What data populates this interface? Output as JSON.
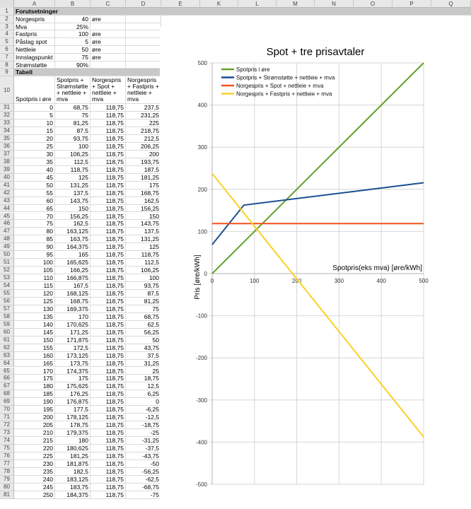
{
  "spreadsheet": {
    "columns": [
      "A",
      "B",
      "C",
      "D",
      "E",
      "K",
      "L",
      "M",
      "N",
      "O",
      "P",
      "Q"
    ],
    "assumptions": {
      "title": "Forutsetninger",
      "rows": [
        {
          "row": "2",
          "label": "Norgespris",
          "value": "40",
          "unit": "øre"
        },
        {
          "row": "3",
          "label": "Mva",
          "value": "25%",
          "unit": ""
        },
        {
          "row": "4",
          "label": "Fastpris",
          "value": "100",
          "unit": "øre"
        },
        {
          "row": "5",
          "label": "Påslag spot",
          "value": "5",
          "unit": "øre"
        },
        {
          "row": "6",
          "label": "Nettleie",
          "value": "50",
          "unit": "øre"
        },
        {
          "row": "7",
          "label": "Innslagspunkt",
          "value": "75",
          "unit": "øre"
        },
        {
          "row": "8",
          "label": "Strømstøtte",
          "value": "90%",
          "unit": ""
        }
      ]
    },
    "table": {
      "title": "Tabell",
      "title_row": "9",
      "header_row": "10",
      "headers": [
        "Spotpris i øre",
        "Spotpris + Strømstøtte + nettleie + mva",
        "Norgespris + Spot + nettleie + mva",
        "Norgespris + Fastpris + nettleie + mva"
      ],
      "rows": [
        [
          "31",
          "0",
          "68,75",
          "118,75",
          "237,5"
        ],
        [
          "32",
          "5",
          "75",
          "118,75",
          "231,25"
        ],
        [
          "33",
          "10",
          "81,25",
          "118,75",
          "225"
        ],
        [
          "34",
          "15",
          "87,5",
          "118,75",
          "218,75"
        ],
        [
          "35",
          "20",
          "93,75",
          "118,75",
          "212,5"
        ],
        [
          "36",
          "25",
          "100",
          "118,75",
          "206,25"
        ],
        [
          "37",
          "30",
          "106,25",
          "118,75",
          "200"
        ],
        [
          "38",
          "35",
          "112,5",
          "118,75",
          "193,75"
        ],
        [
          "39",
          "40",
          "118,75",
          "118,75",
          "187,5"
        ],
        [
          "40",
          "45",
          "125",
          "118,75",
          "181,25"
        ],
        [
          "41",
          "50",
          "131,25",
          "118,75",
          "175"
        ],
        [
          "42",
          "55",
          "137,5",
          "118,75",
          "168,75"
        ],
        [
          "43",
          "60",
          "143,75",
          "118,75",
          "162,5"
        ],
        [
          "44",
          "65",
          "150",
          "118,75",
          "156,25"
        ],
        [
          "45",
          "70",
          "156,25",
          "118,75",
          "150"
        ],
        [
          "46",
          "75",
          "162,5",
          "118,75",
          "143,75"
        ],
        [
          "47",
          "80",
          "163,125",
          "118,75",
          "137,5"
        ],
        [
          "48",
          "85",
          "163,75",
          "118,75",
          "131,25"
        ],
        [
          "49",
          "90",
          "164,375",
          "118,75",
          "125"
        ],
        [
          "50",
          "95",
          "165",
          "118,75",
          "118,75"
        ],
        [
          "51",
          "100",
          "165,625",
          "118,75",
          "112,5"
        ],
        [
          "52",
          "105",
          "166,25",
          "118,75",
          "106,25"
        ],
        [
          "53",
          "110",
          "166,875",
          "118,75",
          "100"
        ],
        [
          "54",
          "115",
          "167,5",
          "118,75",
          "93,75"
        ],
        [
          "55",
          "120",
          "168,125",
          "118,75",
          "87,5"
        ],
        [
          "56",
          "125",
          "168,75",
          "118,75",
          "81,25"
        ],
        [
          "57",
          "130",
          "169,375",
          "118,75",
          "75"
        ],
        [
          "58",
          "135",
          "170",
          "118,75",
          "68,75"
        ],
        [
          "59",
          "140",
          "170,625",
          "118,75",
          "62,5"
        ],
        [
          "60",
          "145",
          "171,25",
          "118,75",
          "56,25"
        ],
        [
          "61",
          "150",
          "171,875",
          "118,75",
          "50"
        ],
        [
          "62",
          "155",
          "172,5",
          "118,75",
          "43,75"
        ],
        [
          "63",
          "160",
          "173,125",
          "118,75",
          "37,5"
        ],
        [
          "64",
          "165",
          "173,75",
          "118,75",
          "31,25"
        ],
        [
          "65",
          "170",
          "174,375",
          "118,75",
          "25"
        ],
        [
          "66",
          "175",
          "175",
          "118,75",
          "18,75"
        ],
        [
          "67",
          "180",
          "175,625",
          "118,75",
          "12,5"
        ],
        [
          "68",
          "185",
          "176,25",
          "118,75",
          "6,25"
        ],
        [
          "69",
          "190",
          "176,875",
          "118,75",
          "0"
        ],
        [
          "70",
          "195",
          "177,5",
          "118,75",
          "-6,25"
        ],
        [
          "71",
          "200",
          "178,125",
          "118,75",
          "-12,5"
        ],
        [
          "72",
          "205",
          "178,75",
          "118,75",
          "-18,75"
        ],
        [
          "73",
          "210",
          "179,375",
          "118,75",
          "-25"
        ],
        [
          "74",
          "215",
          "180",
          "118,75",
          "-31,25"
        ],
        [
          "75",
          "220",
          "180,625",
          "118,75",
          "-37,5"
        ],
        [
          "76",
          "225",
          "181,25",
          "118,75",
          "-43,75"
        ],
        [
          "77",
          "230",
          "181,875",
          "118,75",
          "-50"
        ],
        [
          "78",
          "235",
          "182,5",
          "118,75",
          "-56,25"
        ],
        [
          "79",
          "240",
          "183,125",
          "118,75",
          "-62,5"
        ],
        [
          "80",
          "245",
          "183,75",
          "118,75",
          "-68,75"
        ],
        [
          "81",
          "250",
          "184,375",
          "118,75",
          "-75"
        ]
      ]
    }
  },
  "chart_data": {
    "type": "line",
    "title": "Spot + tre prisavtaler",
    "xlabel": "Spotpris(eks mva) [øre/kWh]",
    "ylabel": "Pris [øre/kWh]",
    "xlim": [
      0,
      500
    ],
    "ylim": [
      -500,
      500
    ],
    "x_ticks": [
      "0",
      "100",
      "200",
      "300",
      "400",
      "500"
    ],
    "y_ticks": [
      "500",
      "400",
      "300",
      "200",
      "100",
      "0",
      "-100",
      "-200",
      "-300",
      "-400",
      "-500"
    ],
    "grid": true,
    "legend_position": "top-left inside",
    "series": [
      {
        "name": "Spotpris i øre",
        "color": "#5fa12a",
        "x": [
          0,
          500
        ],
        "y": [
          0,
          500
        ]
      },
      {
        "name": "Spotpris + Strømstøtte + nettleie + mva",
        "color": "#1b4f91",
        "x": [
          0,
          75,
          500
        ],
        "y": [
          68.75,
          162.5,
          215.63
        ]
      },
      {
        "name": "Norgespris + Spot + nettleie + mva",
        "color": "#f4511e",
        "x": [
          0,
          500
        ],
        "y": [
          118.75,
          118.75
        ]
      },
      {
        "name": "Norgespris + Fastpris + nettleie + mva",
        "color": "#f9d125",
        "x": [
          0,
          500
        ],
        "y": [
          237.5,
          -387.5
        ]
      }
    ]
  }
}
